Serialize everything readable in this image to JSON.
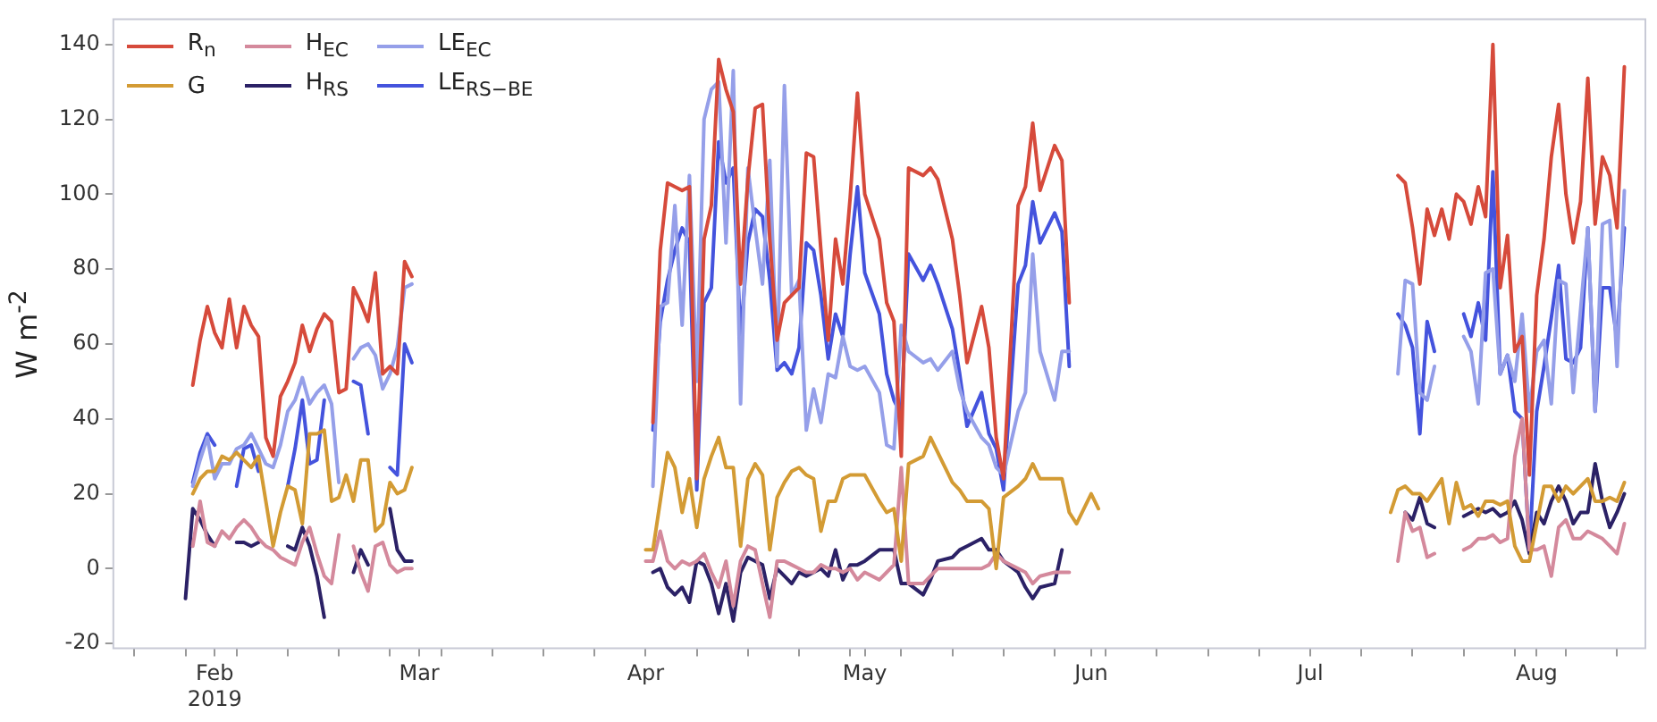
{
  "chart_data": {
    "type": "line",
    "ylabel": "W m$^{-2}$",
    "legend": "top left",
    "grid": false,
    "xlim": [
      "2019-01-18",
      "2019-08-16"
    ],
    "ylim": [
      -21.5,
      147
    ],
    "yticks": [
      -20,
      0,
      20,
      40,
      60,
      80,
      100,
      120,
      140
    ],
    "xticks": [
      {
        "value": "2019-01-21",
        "label": null
      },
      {
        "value": "2019-01-28",
        "label": null
      },
      {
        "value": "2019-02-01",
        "label": "Feb\n2019"
      },
      {
        "value": "2019-02-04",
        "label": null
      },
      {
        "value": "2019-02-11",
        "label": null
      },
      {
        "value": "2019-02-18",
        "label": null
      },
      {
        "value": "2019-02-25",
        "label": null
      },
      {
        "value": "2019-03-01",
        "label": "Mar"
      },
      {
        "value": "2019-03-04",
        "label": null
      },
      {
        "value": "2019-03-11",
        "label": null
      },
      {
        "value": "2019-03-18",
        "label": null
      },
      {
        "value": "2019-03-25",
        "label": null
      },
      {
        "value": "2019-04-01",
        "label": "Apr"
      },
      {
        "value": "2019-04-08",
        "label": null
      },
      {
        "value": "2019-04-15",
        "label": null
      },
      {
        "value": "2019-04-22",
        "label": null
      },
      {
        "value": "2019-04-29",
        "label": null
      },
      {
        "value": "2019-05-01",
        "label": "May"
      },
      {
        "value": "2019-05-06",
        "label": null
      },
      {
        "value": "2019-05-13",
        "label": null
      },
      {
        "value": "2019-05-20",
        "label": null
      },
      {
        "value": "2019-05-27",
        "label": null
      },
      {
        "value": "2019-06-01",
        "label": "Jun"
      },
      {
        "value": "2019-06-03",
        "label": null
      },
      {
        "value": "2019-06-10",
        "label": null
      },
      {
        "value": "2019-06-17",
        "label": null
      },
      {
        "value": "2019-06-24",
        "label": null
      },
      {
        "value": "2019-07-01",
        "label": "Jul"
      },
      {
        "value": "2019-07-08",
        "label": null
      },
      {
        "value": "2019-07-15",
        "label": null
      },
      {
        "value": "2019-07-22",
        "label": null
      },
      {
        "value": "2019-07-29",
        "label": null
      },
      {
        "value": "2019-08-01",
        "label": "Aug"
      },
      {
        "value": "2019-08-05",
        "label": null
      },
      {
        "value": "2019-08-12",
        "label": null
      }
    ],
    "series": [
      {
        "name": "R$_{n}$",
        "color": "#d64a3b",
        "x": [
          "2019-01-29",
          "2019-01-30",
          "2019-01-31",
          "2019-02-01",
          "2019-02-02",
          "2019-02-03",
          "2019-02-04",
          "2019-02-05",
          "2019-02-06",
          "2019-02-07",
          "2019-02-08",
          "2019-02-09",
          "2019-02-10",
          "2019-02-11",
          "2019-02-12",
          "2019-02-13",
          "2019-02-14",
          "2019-02-15",
          "2019-02-16",
          "2019-02-17",
          "2019-02-18",
          "2019-02-19",
          "2019-02-20",
          "2019-02-21",
          "2019-02-22",
          "2019-02-23",
          "2019-02-24",
          "2019-02-25",
          "2019-02-26",
          "2019-02-27",
          "2019-02-28",
          "2019-03-15",
          "2019-04-02",
          "2019-04-03",
          "2019-04-04",
          "2019-04-05",
          "2019-04-06",
          "2019-04-07",
          "2019-04-08",
          "2019-04-09",
          "2019-04-10",
          "2019-04-11",
          "2019-04-12",
          "2019-04-13",
          "2019-04-14",
          "2019-04-15",
          "2019-04-16",
          "2019-04-17",
          "2019-04-18",
          "2019-04-19",
          "2019-04-20",
          "2019-04-21",
          "2019-04-22",
          "2019-04-23",
          "2019-04-24",
          "2019-04-25",
          "2019-04-26",
          "2019-04-27",
          "2019-04-28",
          "2019-04-29",
          "2019-04-30",
          "2019-05-01",
          "2019-05-03",
          "2019-05-04",
          "2019-05-05",
          "2019-05-06",
          "2019-05-07",
          "2019-05-09",
          "2019-05-10",
          "2019-05-11",
          "2019-05-13",
          "2019-05-14",
          "2019-05-15",
          "2019-05-17",
          "2019-05-18",
          "2019-05-19",
          "2019-05-20",
          "2019-05-22",
          "2019-05-23",
          "2019-05-24",
          "2019-05-25",
          "2019-05-27",
          "2019-05-28",
          "2019-05-29",
          "2019-06-20",
          "2019-07-13",
          "2019-07-14",
          "2019-07-15",
          "2019-07-16",
          "2019-07-17",
          "2019-07-18",
          "2019-07-19",
          "2019-07-20",
          "2019-07-21",
          "2019-07-22",
          "2019-07-23",
          "2019-07-24",
          "2019-07-25",
          "2019-07-26",
          "2019-07-27",
          "2019-07-28",
          "2019-07-29",
          "2019-07-30",
          "2019-07-31",
          "2019-08-01",
          "2019-08-02",
          "2019-08-03",
          "2019-08-04",
          "2019-08-05",
          "2019-08-06",
          "2019-08-07",
          "2019-08-08",
          "2019-08-09",
          "2019-08-10",
          "2019-08-11",
          "2019-08-12",
          "2019-08-13"
        ],
        "values": [
          49,
          61,
          70,
          63,
          59,
          72,
          59,
          70,
          65,
          62,
          35,
          30,
          46,
          50,
          55,
          65,
          58,
          64,
          68,
          66,
          47,
          48,
          75,
          71,
          66,
          79,
          52,
          54,
          52,
          82,
          78,
          null,
          39,
          85,
          103,
          102,
          101,
          102,
          24,
          88,
          97,
          136,
          128,
          122,
          76,
          104,
          123,
          124,
          88,
          61,
          71,
          73,
          75,
          111,
          110,
          85,
          61,
          88,
          76,
          99,
          127,
          100,
          88,
          71,
          66,
          30,
          107,
          105,
          107,
          104,
          88,
          73,
          55,
          70,
          59,
          35,
          24,
          97,
          102,
          119,
          101,
          113,
          109,
          71,
          null,
          105,
          103,
          91,
          76,
          96,
          89,
          96,
          88,
          100,
          98,
          92,
          102,
          94,
          140,
          75,
          89,
          58,
          62,
          25,
          73,
          88,
          110,
          124,
          100,
          87,
          98,
          131,
          92,
          110,
          105,
          91,
          134
        ]
      },
      {
        "name": "G",
        "color": "#d39b34",
        "x": [
          "2019-01-29",
          "2019-01-30",
          "2019-01-31",
          "2019-02-01",
          "2019-02-02",
          "2019-02-03",
          "2019-02-04",
          "2019-02-05",
          "2019-02-06",
          "2019-02-07",
          "2019-02-08",
          "2019-02-09",
          "2019-02-10",
          "2019-02-11",
          "2019-02-12",
          "2019-02-13",
          "2019-02-14",
          "2019-02-15",
          "2019-02-16",
          "2019-02-17",
          "2019-02-18",
          "2019-02-19",
          "2019-02-20",
          "2019-02-21",
          "2019-02-22",
          "2019-02-23",
          "2019-02-24",
          "2019-02-25",
          "2019-02-26",
          "2019-02-27",
          "2019-02-28",
          "2019-03-15",
          "2019-04-01",
          "2019-04-02",
          "2019-04-03",
          "2019-04-04",
          "2019-04-05",
          "2019-04-06",
          "2019-04-07",
          "2019-04-08",
          "2019-04-09",
          "2019-04-10",
          "2019-04-11",
          "2019-04-12",
          "2019-04-13",
          "2019-04-14",
          "2019-04-15",
          "2019-04-16",
          "2019-04-17",
          "2019-04-18",
          "2019-04-19",
          "2019-04-20",
          "2019-04-21",
          "2019-04-22",
          "2019-04-23",
          "2019-04-24",
          "2019-04-25",
          "2019-04-26",
          "2019-04-27",
          "2019-04-28",
          "2019-04-29",
          "2019-04-30",
          "2019-05-01",
          "2019-05-03",
          "2019-05-04",
          "2019-05-05",
          "2019-05-06",
          "2019-05-07",
          "2019-05-09",
          "2019-05-10",
          "2019-05-11",
          "2019-05-13",
          "2019-05-14",
          "2019-05-15",
          "2019-05-17",
          "2019-05-18",
          "2019-05-19",
          "2019-05-20",
          "2019-05-22",
          "2019-05-23",
          "2019-05-24",
          "2019-05-25",
          "2019-05-27",
          "2019-05-28",
          "2019-05-29",
          "2019-05-30",
          "2019-06-01",
          "2019-06-02",
          "2019-06-20",
          "2019-07-12",
          "2019-07-13",
          "2019-07-14",
          "2019-07-15",
          "2019-07-16",
          "2019-07-17",
          "2019-07-18",
          "2019-07-19",
          "2019-07-20",
          "2019-07-21",
          "2019-07-22",
          "2019-07-23",
          "2019-07-24",
          "2019-07-25",
          "2019-07-26",
          "2019-07-27",
          "2019-07-28",
          "2019-07-29",
          "2019-07-30",
          "2019-07-31",
          "2019-08-01",
          "2019-08-02",
          "2019-08-03",
          "2019-08-04",
          "2019-08-05",
          "2019-08-06",
          "2019-08-07",
          "2019-08-08",
          "2019-08-09",
          "2019-08-10",
          "2019-08-11",
          "2019-08-12",
          "2019-08-13"
        ],
        "values": [
          20,
          24,
          26,
          26,
          30,
          29,
          31,
          29,
          27,
          30,
          18,
          6,
          15,
          22,
          21,
          12,
          36,
          36,
          37,
          18,
          19,
          25,
          18,
          29,
          29,
          10,
          12,
          23,
          20,
          21,
          27,
          null,
          5,
          5,
          18,
          31,
          27,
          15,
          24,
          11,
          24,
          30,
          35,
          27,
          27,
          6,
          24,
          28,
          25,
          5,
          19,
          23,
          26,
          27,
          25,
          24,
          10,
          18,
          18,
          24,
          25,
          25,
          25,
          18,
          15,
          16,
          2,
          28,
          30,
          35,
          31,
          23,
          21,
          18,
          18,
          16,
          0,
          19,
          22,
          24,
          28,
          24,
          24,
          24,
          15,
          12,
          20,
          16,
          null,
          15,
          21,
          22,
          20,
          20,
          18,
          21,
          24,
          12,
          23,
          16,
          17,
          14,
          18,
          18,
          17,
          18,
          6,
          2,
          2,
          12,
          22,
          22,
          18,
          22,
          20,
          22,
          24,
          18,
          18,
          19,
          18,
          23
        ]
      },
      {
        "name": "H$_{EC}$",
        "color": "#d4899c",
        "x": [
          "2019-01-29",
          "2019-01-30",
          "2019-01-31",
          "2019-02-01",
          "2019-02-02",
          "2019-02-03",
          "2019-02-04",
          "2019-02-05",
          "2019-02-06",
          "2019-02-07",
          "2019-02-08",
          "2019-02-09",
          "2019-02-10",
          "2019-02-11",
          "2019-02-12",
          "2019-02-13",
          "2019-02-14",
          "2019-02-15",
          "2019-02-16",
          "2019-02-17",
          "2019-02-18",
          "2019-02-19",
          "2019-02-20",
          "2019-02-21",
          "2019-02-22",
          "2019-02-23",
          "2019-02-24",
          "2019-02-25",
          "2019-02-26",
          "2019-02-27",
          "2019-02-28",
          "2019-03-15",
          "2019-04-01",
          "2019-04-02",
          "2019-04-03",
          "2019-04-04",
          "2019-04-05",
          "2019-04-06",
          "2019-04-07",
          "2019-04-08",
          "2019-04-09",
          "2019-04-10",
          "2019-04-11",
          "2019-04-12",
          "2019-04-13",
          "2019-04-14",
          "2019-04-15",
          "2019-04-16",
          "2019-04-17",
          "2019-04-18",
          "2019-04-19",
          "2019-04-20",
          "2019-04-21",
          "2019-04-22",
          "2019-04-23",
          "2019-04-24",
          "2019-04-25",
          "2019-04-26",
          "2019-04-27",
          "2019-04-28",
          "2019-04-29",
          "2019-04-30",
          "2019-05-01",
          "2019-05-03",
          "2019-05-04",
          "2019-05-05",
          "2019-05-06",
          "2019-05-07",
          "2019-05-09",
          "2019-05-10",
          "2019-05-11",
          "2019-05-13",
          "2019-05-14",
          "2019-05-15",
          "2019-05-17",
          "2019-05-18",
          "2019-05-19",
          "2019-05-20",
          "2019-05-22",
          "2019-05-23",
          "2019-05-24",
          "2019-05-25",
          "2019-05-27",
          "2019-05-28",
          "2019-05-29",
          "2019-06-20",
          "2019-07-13",
          "2019-07-14",
          "2019-07-15",
          "2019-07-16",
          "2019-07-17",
          "2019-07-18",
          "2019-07-20",
          "2019-07-22",
          "2019-07-23",
          "2019-07-24",
          "2019-07-25",
          "2019-07-26",
          "2019-07-27",
          "2019-07-28",
          "2019-07-29",
          "2019-07-30",
          "2019-07-31",
          "2019-08-01",
          "2019-08-02",
          "2019-08-03",
          "2019-08-04",
          "2019-08-05",
          "2019-08-06",
          "2019-08-07",
          "2019-08-08",
          "2019-08-09",
          "2019-08-10",
          "2019-08-11",
          "2019-08-12",
          "2019-08-13"
        ],
        "values": [
          6,
          18,
          7,
          6,
          10,
          8,
          11,
          13,
          11,
          8,
          6,
          5,
          3,
          2,
          1,
          7,
          11,
          4,
          -2,
          -4,
          9,
          null,
          6,
          -1,
          -6,
          6,
          7,
          1,
          -1,
          0,
          0,
          null,
          2,
          2,
          10,
          2,
          0,
          2,
          1,
          2,
          4,
          -1,
          -5,
          2,
          -10,
          2,
          6,
          5,
          -4,
          -13,
          2,
          2,
          1,
          0,
          -1,
          -1,
          1,
          0,
          0,
          -1,
          0,
          -3,
          -1,
          -3,
          -1,
          1,
          27,
          -4,
          -4,
          -2,
          0,
          0,
          0,
          0,
          0,
          1,
          4,
          2,
          0,
          -1,
          -4,
          -2,
          -1,
          -1,
          -1,
          null,
          2,
          15,
          10,
          11,
          3,
          4,
          null,
          5,
          6,
          8,
          8,
          9,
          7,
          8,
          30,
          40,
          5,
          5,
          6,
          -2,
          11,
          13,
          8,
          8,
          10,
          9,
          8,
          6,
          4,
          12
        ]
      },
      {
        "name": "H$_{RS}$",
        "color": "#2b2166",
        "x": [
          "2019-01-28",
          "2019-01-29",
          "2019-01-30",
          "2019-01-31",
          "2019-02-01",
          "2019-02-02",
          "2019-02-04",
          "2019-02-05",
          "2019-02-06",
          "2019-02-07",
          "2019-02-09",
          "2019-02-11",
          "2019-02-12",
          "2019-02-13",
          "2019-02-14",
          "2019-02-15",
          "2019-02-16",
          "2019-02-18",
          "2019-02-20",
          "2019-02-21",
          "2019-02-22",
          "2019-02-24",
          "2019-02-25",
          "2019-02-26",
          "2019-02-27",
          "2019-02-28",
          "2019-03-15",
          "2019-04-02",
          "2019-04-03",
          "2019-04-04",
          "2019-04-05",
          "2019-04-06",
          "2019-04-07",
          "2019-04-08",
          "2019-04-09",
          "2019-04-10",
          "2019-04-11",
          "2019-04-12",
          "2019-04-13",
          "2019-04-14",
          "2019-04-15",
          "2019-04-16",
          "2019-04-17",
          "2019-04-18",
          "2019-04-19",
          "2019-04-20",
          "2019-04-21",
          "2019-04-22",
          "2019-04-23",
          "2019-04-24",
          "2019-04-25",
          "2019-04-26",
          "2019-04-27",
          "2019-04-28",
          "2019-04-29",
          "2019-04-30",
          "2019-05-01",
          "2019-05-03",
          "2019-05-04",
          "2019-05-05",
          "2019-05-06",
          "2019-05-07",
          "2019-05-09",
          "2019-05-10",
          "2019-05-11",
          "2019-05-13",
          "2019-05-14",
          "2019-05-15",
          "2019-05-17",
          "2019-05-18",
          "2019-05-19",
          "2019-05-20",
          "2019-05-22",
          "2019-05-23",
          "2019-05-24",
          "2019-05-25",
          "2019-05-27",
          "2019-05-28",
          "2019-06-20",
          "2019-07-14",
          "2019-07-15",
          "2019-07-16",
          "2019-07-17",
          "2019-07-18",
          "2019-07-20",
          "2019-07-22",
          "2019-07-23",
          "2019-07-24",
          "2019-07-25",
          "2019-07-26",
          "2019-07-27",
          "2019-07-28",
          "2019-07-29",
          "2019-07-30",
          "2019-07-31",
          "2019-08-01",
          "2019-08-02",
          "2019-08-03",
          "2019-08-04",
          "2019-08-05",
          "2019-08-06",
          "2019-08-07",
          "2019-08-08",
          "2019-08-09",
          "2019-08-10",
          "2019-08-11",
          "2019-08-12",
          "2019-08-13"
        ],
        "values": [
          -8,
          16,
          13,
          9,
          6,
          null,
          7,
          7,
          6,
          7,
          null,
          6,
          5,
          11,
          6,
          -2,
          -13,
          null,
          -1,
          5,
          1,
          null,
          16,
          5,
          2,
          2,
          null,
          -1,
          0,
          -5,
          -7,
          -5,
          -9,
          2,
          1,
          -4,
          -12,
          -4,
          -14,
          -1,
          3,
          2,
          1,
          -8,
          0,
          -2,
          -4,
          -1,
          -2,
          -1,
          0,
          -2,
          5,
          -3,
          1,
          1,
          2,
          5,
          5,
          5,
          -4,
          -4,
          -7,
          -3,
          2,
          3,
          5,
          6,
          8,
          5,
          5,
          2,
          -1,
          -5,
          -8,
          -5,
          -4,
          5,
          null,
          15,
          13,
          19,
          12,
          11,
          null,
          14,
          15,
          16,
          15,
          16,
          14,
          15,
          18,
          13,
          4,
          15,
          12,
          18,
          22,
          18,
          12,
          15,
          15,
          28,
          18,
          11,
          15,
          20
        ]
      },
      {
        "name": "LE$_{EC}$",
        "color": "#959fe9",
        "x": [
          "2019-01-29",
          "2019-01-30",
          "2019-01-31",
          "2019-02-01",
          "2019-02-02",
          "2019-02-03",
          "2019-02-04",
          "2019-02-05",
          "2019-02-06",
          "2019-02-07",
          "2019-02-08",
          "2019-02-09",
          "2019-02-10",
          "2019-02-11",
          "2019-02-12",
          "2019-02-13",
          "2019-02-14",
          "2019-02-15",
          "2019-02-16",
          "2019-02-17",
          "2019-02-18",
          "2019-02-19",
          "2019-02-20",
          "2019-02-21",
          "2019-02-22",
          "2019-02-23",
          "2019-02-24",
          "2019-02-25",
          "2019-02-26",
          "2019-02-27",
          "2019-02-28",
          "2019-03-15",
          "2019-04-02",
          "2019-04-03",
          "2019-04-04",
          "2019-04-05",
          "2019-04-06",
          "2019-04-07",
          "2019-04-08",
          "2019-04-09",
          "2019-04-10",
          "2019-04-11",
          "2019-04-12",
          "2019-04-13",
          "2019-04-14",
          "2019-04-15",
          "2019-04-16",
          "2019-04-17",
          "2019-04-18",
          "2019-04-19",
          "2019-04-20",
          "2019-04-21",
          "2019-04-22",
          "2019-04-23",
          "2019-04-24",
          "2019-04-25",
          "2019-04-26",
          "2019-04-27",
          "2019-04-28",
          "2019-04-29",
          "2019-04-30",
          "2019-05-01",
          "2019-05-03",
          "2019-05-04",
          "2019-05-05",
          "2019-05-06",
          "2019-05-07",
          "2019-05-09",
          "2019-05-10",
          "2019-05-11",
          "2019-05-13",
          "2019-05-14",
          "2019-05-15",
          "2019-05-17",
          "2019-05-18",
          "2019-05-19",
          "2019-05-20",
          "2019-05-22",
          "2019-05-23",
          "2019-05-24",
          "2019-05-25",
          "2019-05-27",
          "2019-05-28",
          "2019-05-29",
          "2019-06-20",
          "2019-07-13",
          "2019-07-14",
          "2019-07-15",
          "2019-07-16",
          "2019-07-17",
          "2019-07-18",
          "2019-07-20",
          "2019-07-22",
          "2019-07-23",
          "2019-07-24",
          "2019-07-25",
          "2019-07-26",
          "2019-07-27",
          "2019-07-28",
          "2019-07-29",
          "2019-07-30",
          "2019-07-31",
          "2019-08-01",
          "2019-08-02",
          "2019-08-03",
          "2019-08-04",
          "2019-08-05",
          "2019-08-06",
          "2019-08-07",
          "2019-08-08",
          "2019-08-09",
          "2019-08-10",
          "2019-08-11",
          "2019-08-12",
          "2019-08-13"
        ],
        "values": [
          22,
          29,
          35,
          24,
          28,
          28,
          32,
          33,
          36,
          32,
          28,
          27,
          33,
          42,
          45,
          51,
          44,
          47,
          49,
          44,
          23,
          null,
          56,
          59,
          60,
          57,
          48,
          52,
          59,
          75,
          76,
          null,
          22,
          70,
          71,
          97,
          65,
          105,
          50,
          120,
          128,
          130,
          87,
          133,
          44,
          107,
          91,
          76,
          109,
          54,
          129,
          73,
          77,
          37,
          48,
          39,
          52,
          51,
          62,
          54,
          53,
          54,
          47,
          33,
          32,
          65,
          58,
          55,
          56,
          53,
          58,
          48,
          42,
          35,
          33,
          27,
          25,
          42,
          47,
          84,
          58,
          45,
          58,
          58,
          null,
          52,
          77,
          76,
          47,
          45,
          54,
          null,
          62,
          58,
          44,
          79,
          80,
          52,
          57,
          50,
          68,
          42,
          58,
          61,
          44,
          77,
          76,
          47,
          69,
          91,
          42,
          92,
          93,
          54,
          101
        ]
      },
      {
        "name": "LE$_{RS−BE}$",
        "color": "#4453dd",
        "x": [
          "2019-01-29",
          "2019-01-30",
          "2019-01-31",
          "2019-02-01",
          "2019-02-02",
          "2019-02-04",
          "2019-02-05",
          "2019-02-06",
          "2019-02-07",
          "2019-02-09",
          "2019-02-11",
          "2019-02-12",
          "2019-02-13",
          "2019-02-14",
          "2019-02-15",
          "2019-02-16",
          "2019-02-18",
          "2019-02-20",
          "2019-02-21",
          "2019-02-22",
          "2019-02-24",
          "2019-02-25",
          "2019-02-26",
          "2019-02-27",
          "2019-02-28",
          "2019-03-15",
          "2019-04-02",
          "2019-04-03",
          "2019-04-04",
          "2019-04-05",
          "2019-04-06",
          "2019-04-07",
          "2019-04-08",
          "2019-04-09",
          "2019-04-10",
          "2019-04-11",
          "2019-04-12",
          "2019-04-13",
          "2019-04-14",
          "2019-04-15",
          "2019-04-16",
          "2019-04-17",
          "2019-04-18",
          "2019-04-19",
          "2019-04-20",
          "2019-04-21",
          "2019-04-22",
          "2019-04-23",
          "2019-04-24",
          "2019-04-25",
          "2019-04-26",
          "2019-04-27",
          "2019-04-28",
          "2019-04-29",
          "2019-04-30",
          "2019-05-01",
          "2019-05-03",
          "2019-05-04",
          "2019-05-05",
          "2019-05-06",
          "2019-05-07",
          "2019-05-09",
          "2019-05-10",
          "2019-05-11",
          "2019-05-13",
          "2019-05-14",
          "2019-05-15",
          "2019-05-17",
          "2019-05-18",
          "2019-05-19",
          "2019-05-20",
          "2019-05-22",
          "2019-05-23",
          "2019-05-24",
          "2019-05-25",
          "2019-05-27",
          "2019-05-28",
          "2019-05-29",
          "2019-06-20",
          "2019-07-13",
          "2019-07-14",
          "2019-07-15",
          "2019-07-16",
          "2019-07-17",
          "2019-07-18",
          "2019-07-20",
          "2019-07-22",
          "2019-07-23",
          "2019-07-24",
          "2019-07-25",
          "2019-07-26",
          "2019-07-27",
          "2019-07-28",
          "2019-07-29",
          "2019-07-30",
          "2019-07-31",
          "2019-08-01",
          "2019-08-02",
          "2019-08-03",
          "2019-08-04",
          "2019-08-05",
          "2019-08-06",
          "2019-08-07",
          "2019-08-08",
          "2019-08-09",
          "2019-08-10",
          "2019-08-11",
          "2019-08-12",
          "2019-08-13"
        ],
        "values": [
          23,
          31,
          36,
          33,
          null,
          22,
          32,
          33,
          26,
          null,
          22,
          32,
          45,
          28,
          29,
          45,
          null,
          50,
          49,
          36,
          null,
          27,
          25,
          60,
          55,
          null,
          37,
          66,
          77,
          85,
          91,
          87,
          21,
          71,
          75,
          114,
          103,
          107,
          62,
          87,
          96,
          94,
          77,
          53,
          55,
          52,
          59,
          87,
          85,
          73,
          56,
          68,
          62,
          84,
          102,
          79,
          68,
          52,
          45,
          41,
          84,
          77,
          81,
          76,
          64,
          52,
          38,
          47,
          36,
          32,
          21,
          76,
          81,
          98,
          87,
          95,
          90,
          54,
          null,
          68,
          65,
          59,
          36,
          66,
          58,
          null,
          68,
          62,
          71,
          61,
          106,
          52,
          57,
          42,
          40,
          5,
          42,
          54,
          67,
          81,
          56,
          55,
          59,
          91,
          42,
          75,
          75,
          61,
          91
        ]
      }
    ]
  }
}
